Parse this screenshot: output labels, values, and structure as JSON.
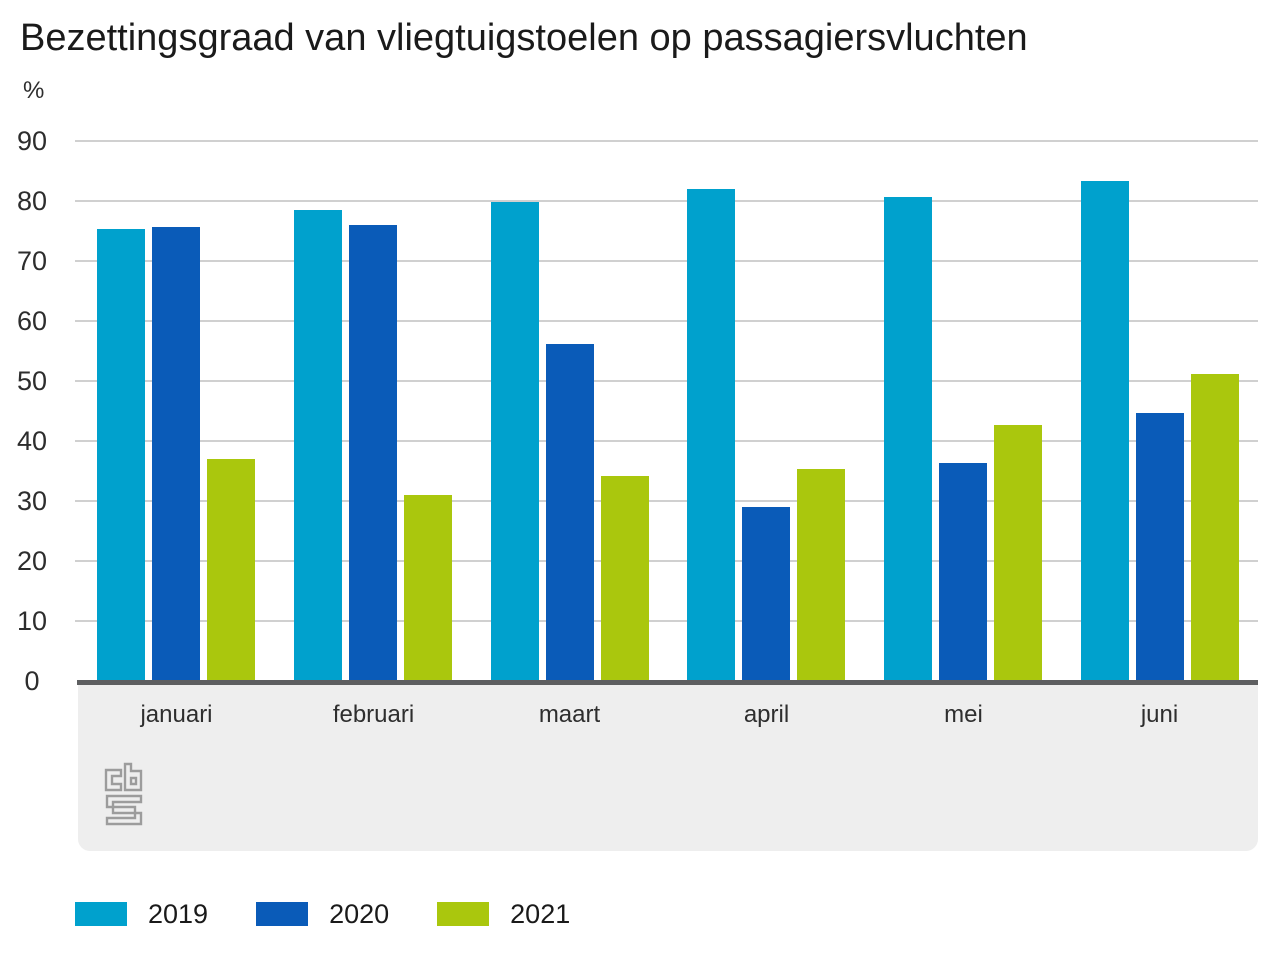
{
  "chart_data": {
    "type": "bar",
    "title": "Bezettingsgraad van vliegtuigstoelen op passagiersvluchten",
    "unit_label": "%",
    "xlabel": "",
    "ylabel": "%",
    "categories": [
      "januari",
      "februari",
      "maart",
      "april",
      "mei",
      "juni"
    ],
    "series": [
      {
        "name": "2019",
        "color": "#00a1cd",
        "values": [
          75.3,
          78.5,
          79.9,
          82.0,
          80.6,
          83.4
        ]
      },
      {
        "name": "2020",
        "color": "#0a5bb8",
        "values": [
          75.6,
          76.0,
          56.2,
          29.0,
          36.3,
          44.6
        ]
      },
      {
        "name": "2021",
        "color": "#aac70d",
        "values": [
          37.0,
          31.0,
          34.2,
          35.3,
          42.7,
          51.2
        ]
      }
    ],
    "ylim": [
      0,
      90
    ],
    "yticks": [
      0,
      10,
      20,
      30,
      40,
      50,
      60,
      70,
      80,
      90
    ],
    "grid": "horizontal",
    "legend_position": "bottom"
  },
  "branding": {
    "logo_icon": "cbs-logo"
  },
  "colors": {
    "gridline": "#d0d0d0",
    "baseline": "#5d5e60",
    "footer_bg": "#eeeeee",
    "title_text": "#1a1a1a",
    "axis_text": "#2d2d2d",
    "logo_stroke": "#9c9c9c"
  }
}
